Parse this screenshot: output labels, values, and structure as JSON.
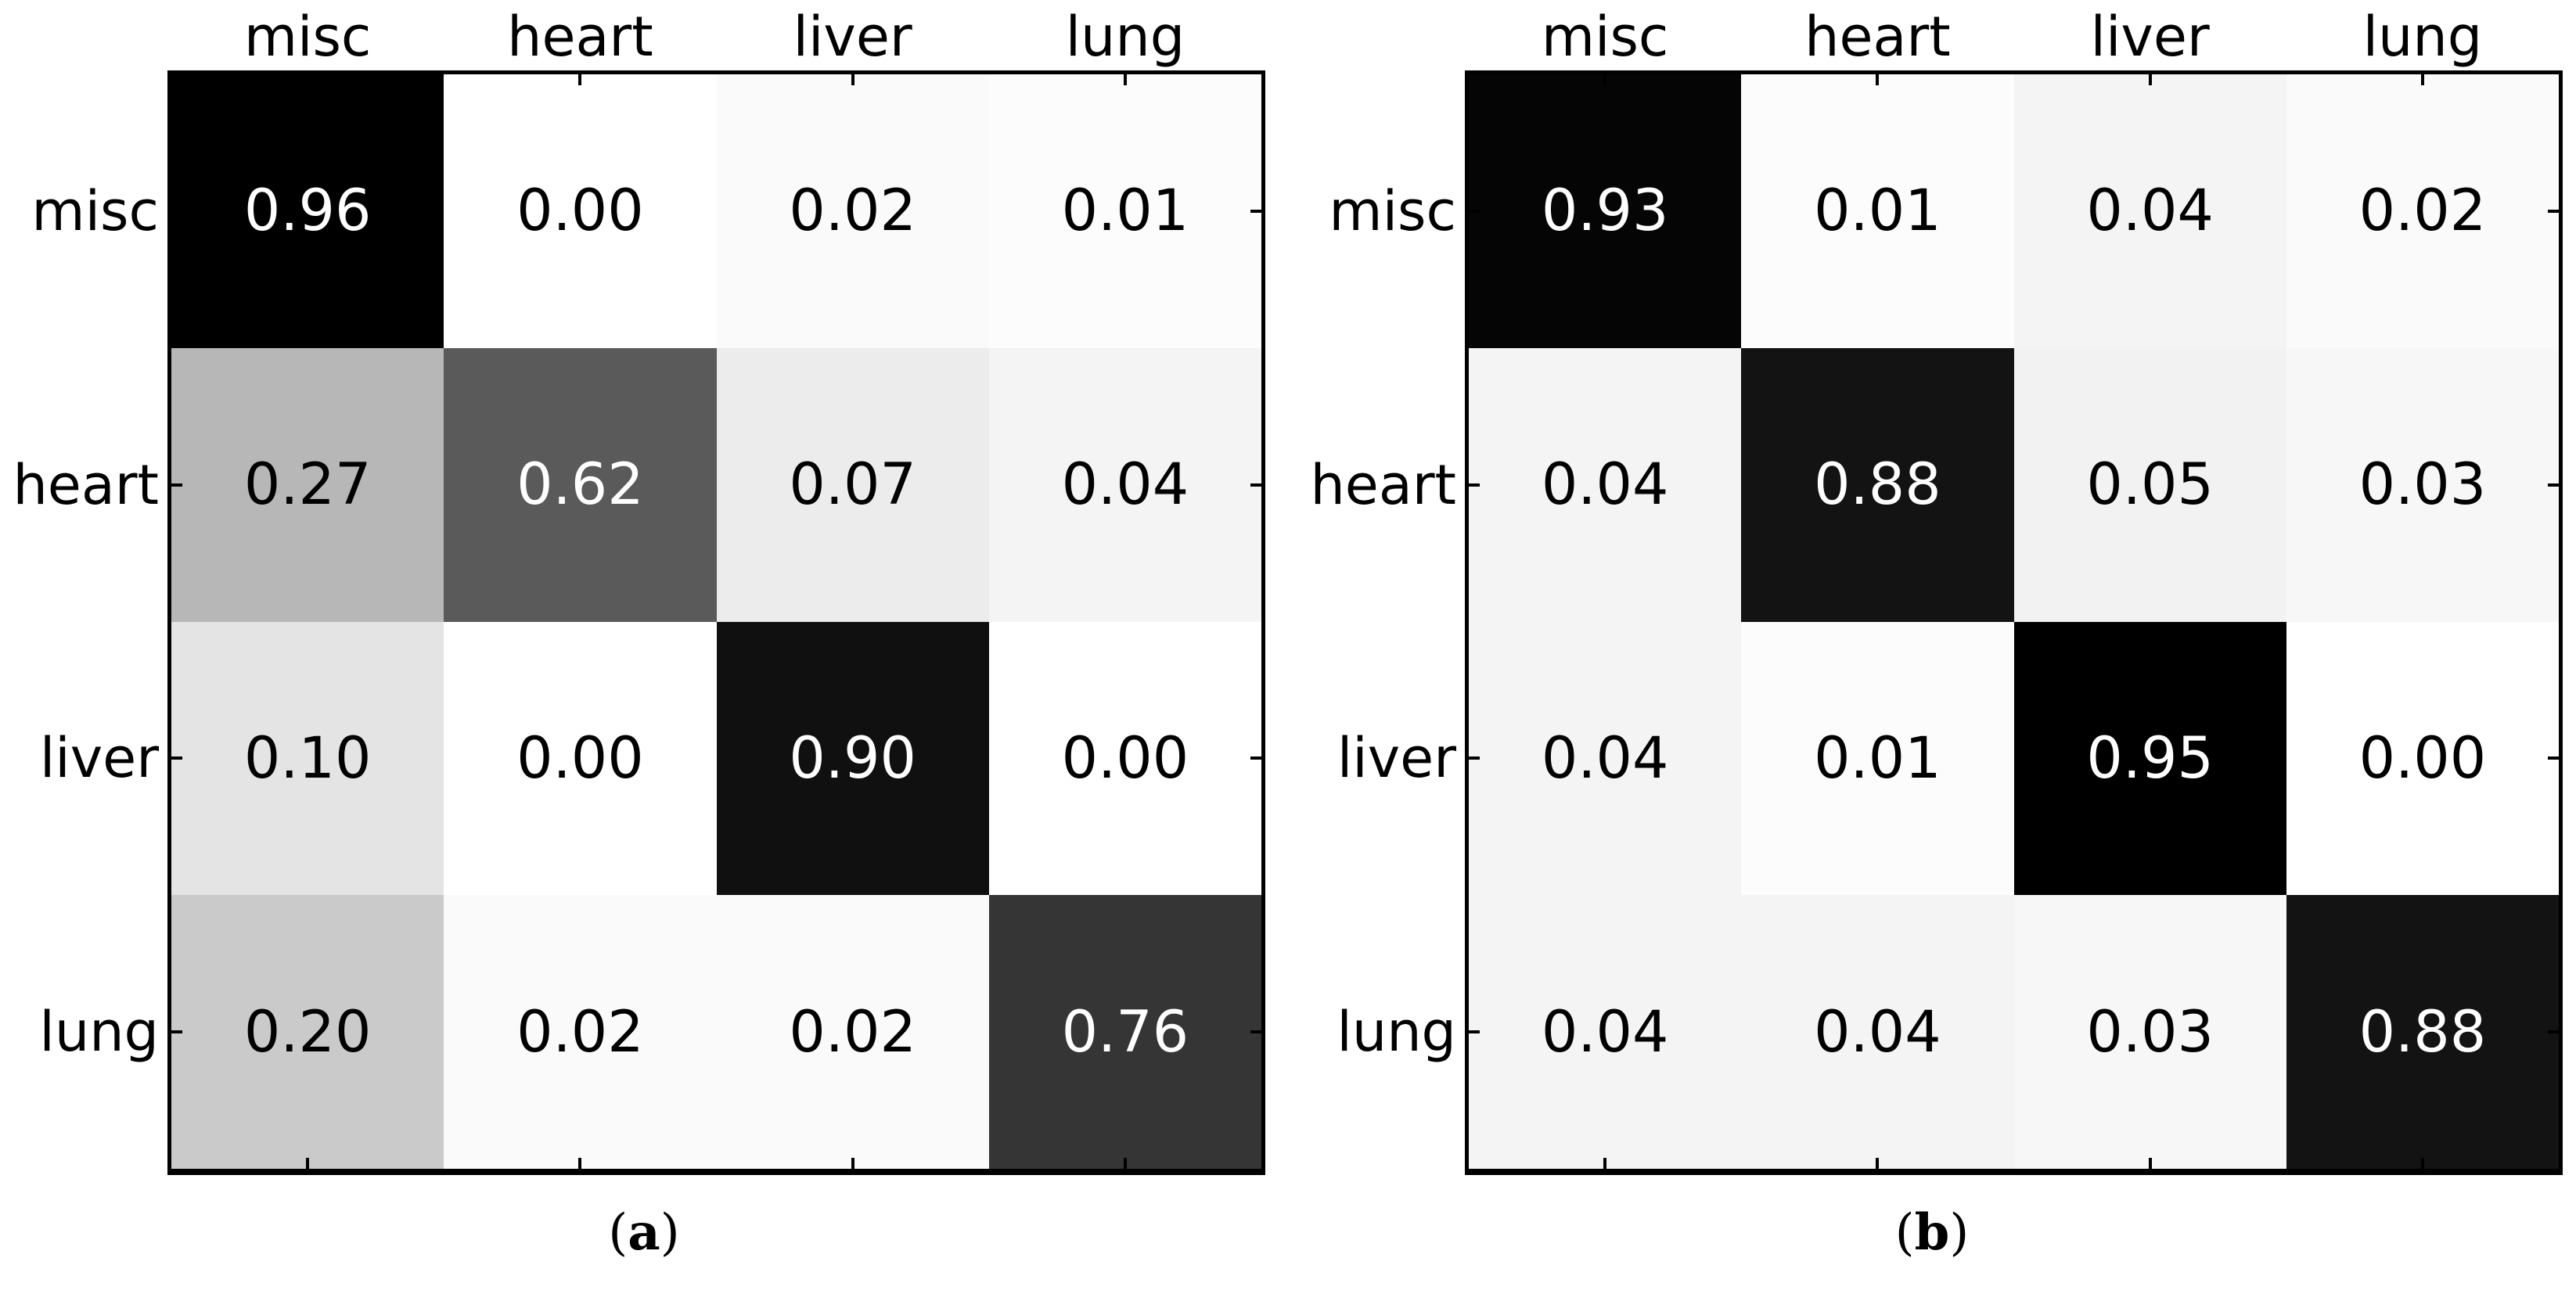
{
  "figure": {
    "panels": [
      {
        "caption": {
          "open": "(",
          "letter": "a",
          "close": ")"
        },
        "columns": [
          "misc",
          "heart",
          "liver",
          "lung"
        ],
        "rows": [
          "misc",
          "heart",
          "liver",
          "lung"
        ],
        "cells": [
          [
            {
              "label": "0.96",
              "bg": "#000000",
              "fg": "#ffffff"
            },
            {
              "label": "0.00",
              "bg": "#ffffff",
              "fg": "#000000"
            },
            {
              "label": "0.02",
              "bg": "#fafafa",
              "fg": "#000000"
            },
            {
              "label": "0.01",
              "bg": "#fcfcfc",
              "fg": "#000000"
            }
          ],
          [
            {
              "label": "0.27",
              "bg": "#b7b7b7",
              "fg": "#000000"
            },
            {
              "label": "0.62",
              "bg": "#5a5a5a",
              "fg": "#ffffff"
            },
            {
              "label": "0.07",
              "bg": "#ececec",
              "fg": "#000000"
            },
            {
              "label": "0.04",
              "bg": "#f4f4f4",
              "fg": "#000000"
            }
          ],
          [
            {
              "label": "0.10",
              "bg": "#e4e4e4",
              "fg": "#000000"
            },
            {
              "label": "0.00",
              "bg": "#ffffff",
              "fg": "#000000"
            },
            {
              "label": "0.90",
              "bg": "#101010",
              "fg": "#ffffff"
            },
            {
              "label": "0.00",
              "bg": "#ffffff",
              "fg": "#000000"
            }
          ],
          [
            {
              "label": "0.20",
              "bg": "#cacaca",
              "fg": "#000000"
            },
            {
              "label": "0.02",
              "bg": "#fafafa",
              "fg": "#000000"
            },
            {
              "label": "0.02",
              "bg": "#fafafa",
              "fg": "#000000"
            },
            {
              "label": "0.76",
              "bg": "#353535",
              "fg": "#ffffff"
            }
          ]
        ]
      },
      {
        "caption": {
          "open": "(",
          "letter": "b",
          "close": ")"
        },
        "columns": [
          "misc",
          "heart",
          "liver",
          "lung"
        ],
        "rows": [
          "misc",
          "heart",
          "liver",
          "lung"
        ],
        "cells": [
          [
            {
              "label": "0.93",
              "bg": "#050505",
              "fg": "#ffffff"
            },
            {
              "label": "0.01",
              "bg": "#fcfcfc",
              "fg": "#000000"
            },
            {
              "label": "0.04",
              "bg": "#f4f4f4",
              "fg": "#000000"
            },
            {
              "label": "0.02",
              "bg": "#fafafa",
              "fg": "#000000"
            }
          ],
          [
            {
              "label": "0.04",
              "bg": "#f4f4f4",
              "fg": "#000000"
            },
            {
              "label": "0.88",
              "bg": "#131313",
              "fg": "#ffffff"
            },
            {
              "label": "0.05",
              "bg": "#f2f2f2",
              "fg": "#000000"
            },
            {
              "label": "0.03",
              "bg": "#f7f7f7",
              "fg": "#000000"
            }
          ],
          [
            {
              "label": "0.04",
              "bg": "#f4f4f4",
              "fg": "#000000"
            },
            {
              "label": "0.01",
              "bg": "#fcfcfc",
              "fg": "#000000"
            },
            {
              "label": "0.95",
              "bg": "#000000",
              "fg": "#ffffff"
            },
            {
              "label": "0.00",
              "bg": "#ffffff",
              "fg": "#000000"
            }
          ],
          [
            {
              "label": "0.04",
              "bg": "#f4f4f4",
              "fg": "#000000"
            },
            {
              "label": "0.04",
              "bg": "#f4f4f4",
              "fg": "#000000"
            },
            {
              "label": "0.03",
              "bg": "#f7f7f7",
              "fg": "#000000"
            },
            {
              "label": "0.88",
              "bg": "#131313",
              "fg": "#ffffff"
            }
          ]
        ]
      }
    ],
    "colors": {
      "frame": "#000000",
      "background": "#ffffff"
    }
  },
  "chart_data": [
    {
      "type": "heatmap",
      "title": "(a)",
      "x_categories": [
        "misc",
        "heart",
        "liver",
        "lung"
      ],
      "y_categories": [
        "misc",
        "heart",
        "liver",
        "lung"
      ],
      "values": [
        [
          0.96,
          0.0,
          0.02,
          0.01
        ],
        [
          0.27,
          0.62,
          0.07,
          0.04
        ],
        [
          0.1,
          0.0,
          0.9,
          0.0
        ],
        [
          0.2,
          0.02,
          0.02,
          0.76
        ]
      ],
      "value_range": [
        0,
        0.96
      ],
      "colormap": "greys-inverted (0 = white, max = black)",
      "cell_text_format": "two decimals",
      "grid": false,
      "legend": "none"
    },
    {
      "type": "heatmap",
      "title": "(b)",
      "x_categories": [
        "misc",
        "heart",
        "liver",
        "lung"
      ],
      "y_categories": [
        "misc",
        "heart",
        "liver",
        "lung"
      ],
      "values": [
        [
          0.93,
          0.01,
          0.04,
          0.02
        ],
        [
          0.04,
          0.88,
          0.05,
          0.03
        ],
        [
          0.04,
          0.01,
          0.95,
          0.0
        ],
        [
          0.04,
          0.04,
          0.03,
          0.88
        ]
      ],
      "value_range": [
        0,
        0.95
      ],
      "colormap": "greys-inverted (0 = white, max = black)",
      "cell_text_format": "two decimals",
      "grid": false,
      "legend": "none"
    }
  ]
}
